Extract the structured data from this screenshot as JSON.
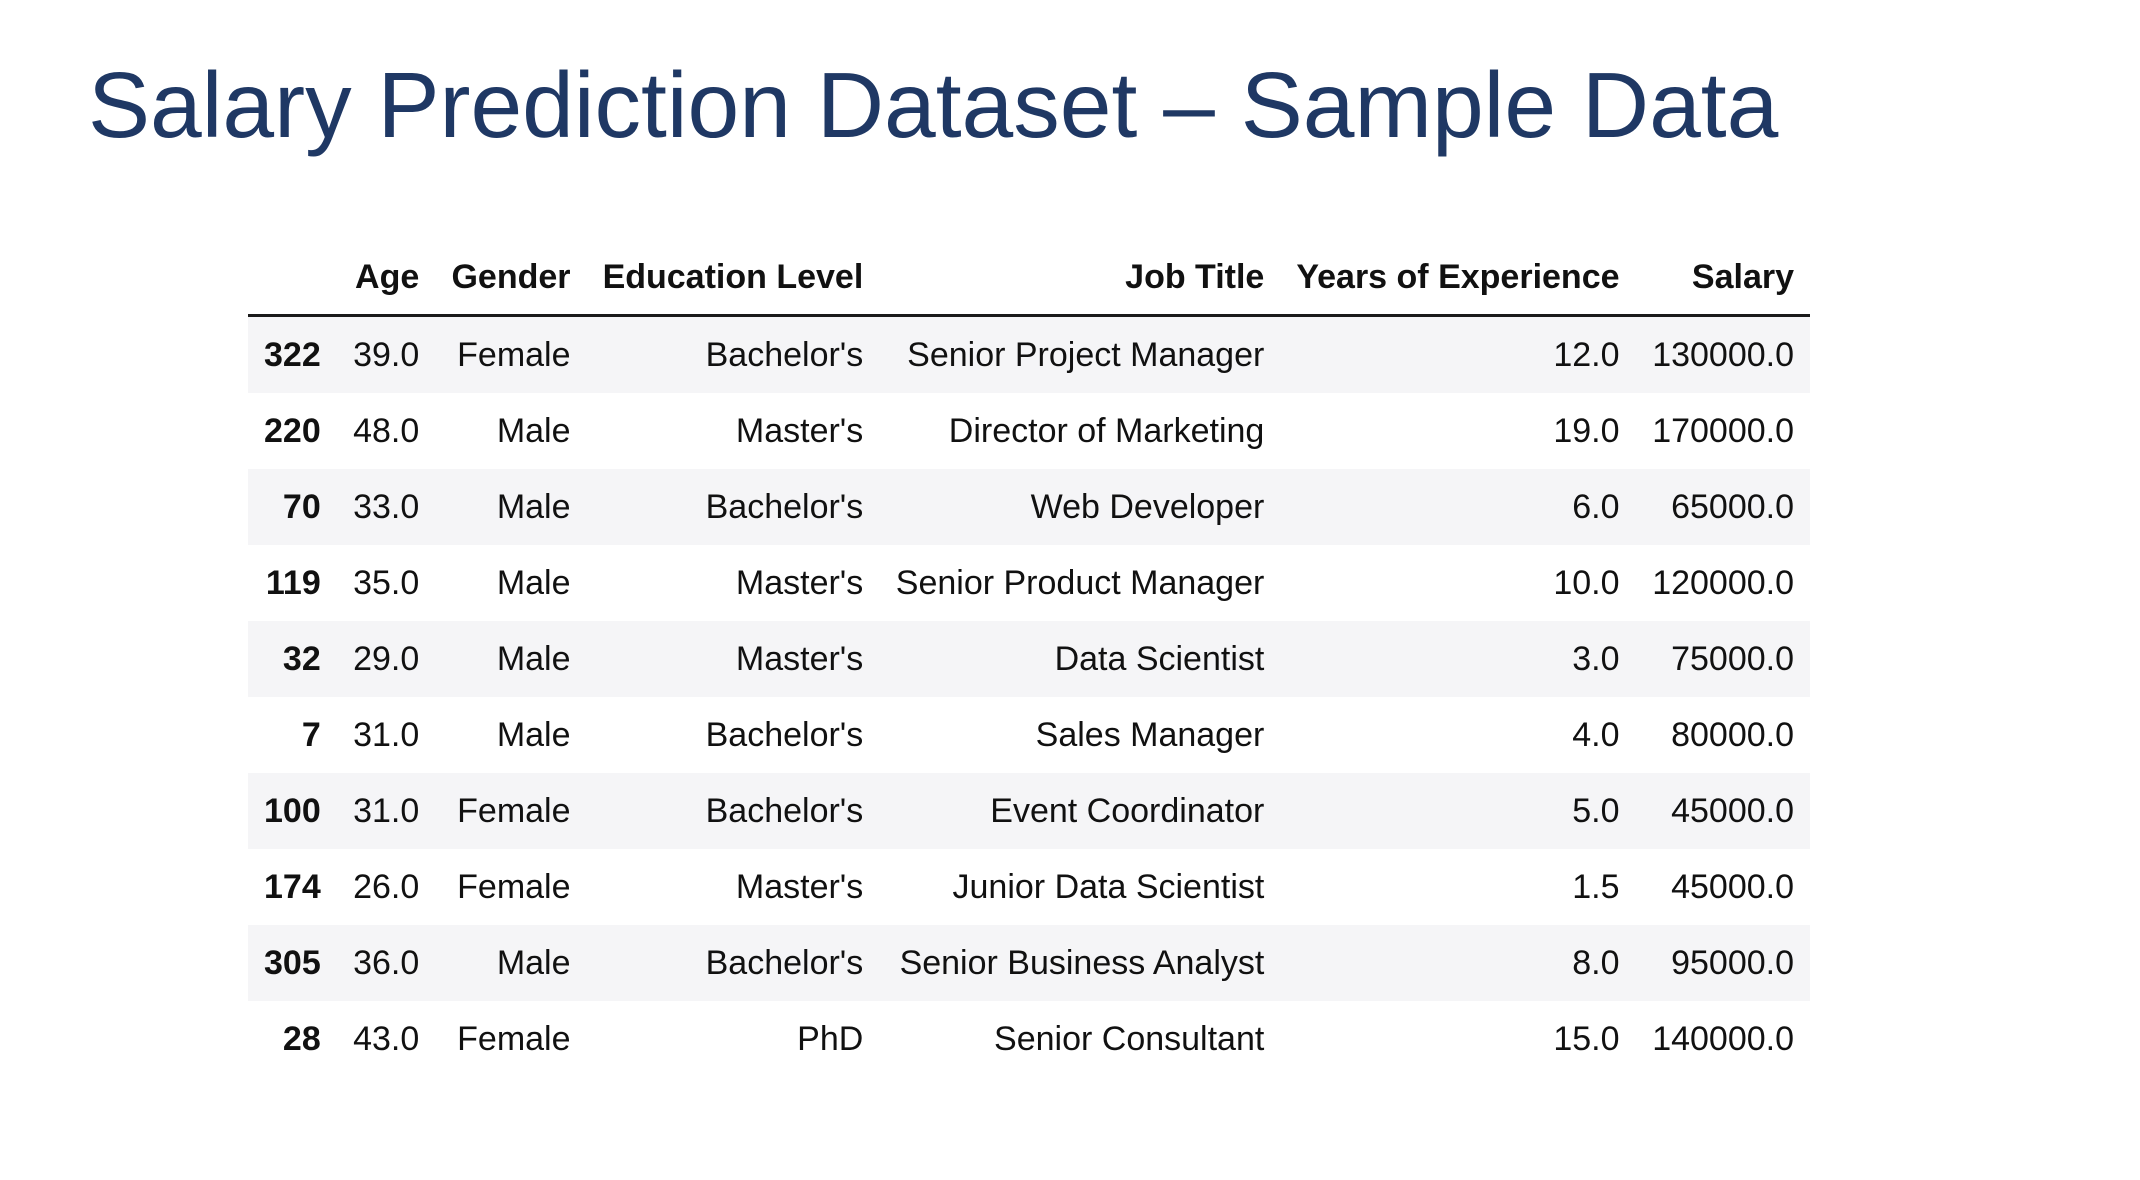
{
  "slide": {
    "title": "Salary Prediction Dataset – Sample Data"
  },
  "table": {
    "index_header": "",
    "columns": [
      "Age",
      "Gender",
      "Education Level",
      "Job Title",
      "Years of Experience",
      "Salary"
    ],
    "rows": [
      {
        "index": "322",
        "cells": [
          "39.0",
          "Female",
          "Bachelor's",
          "Senior Project Manager",
          "12.0",
          "130000.0"
        ]
      },
      {
        "index": "220",
        "cells": [
          "48.0",
          "Male",
          "Master's",
          "Director of Marketing",
          "19.0",
          "170000.0"
        ]
      },
      {
        "index": "70",
        "cells": [
          "33.0",
          "Male",
          "Bachelor's",
          "Web Developer",
          "6.0",
          "65000.0"
        ]
      },
      {
        "index": "119",
        "cells": [
          "35.0",
          "Male",
          "Master's",
          "Senior Product Manager",
          "10.0",
          "120000.0"
        ]
      },
      {
        "index": "32",
        "cells": [
          "29.0",
          "Male",
          "Master's",
          "Data Scientist",
          "3.0",
          "75000.0"
        ]
      },
      {
        "index": "7",
        "cells": [
          "31.0",
          "Male",
          "Bachelor's",
          "Sales Manager",
          "4.0",
          "80000.0"
        ]
      },
      {
        "index": "100",
        "cells": [
          "31.0",
          "Female",
          "Bachelor's",
          "Event Coordinator",
          "5.0",
          "45000.0"
        ]
      },
      {
        "index": "174",
        "cells": [
          "26.0",
          "Female",
          "Master's",
          "Junior Data Scientist",
          "1.5",
          "45000.0"
        ]
      },
      {
        "index": "305",
        "cells": [
          "36.0",
          "Male",
          "Bachelor's",
          "Senior Business Analyst",
          "8.0",
          "95000.0"
        ]
      },
      {
        "index": "28",
        "cells": [
          "43.0",
          "Female",
          "PhD",
          "Senior Consultant",
          "15.0",
          "140000.0"
        ]
      }
    ]
  },
  "colors": {
    "title": "#1f3864",
    "text": "#111111",
    "stripe": "#f5f5f7",
    "rule": "#1a1a1a",
    "background": "#ffffff"
  }
}
